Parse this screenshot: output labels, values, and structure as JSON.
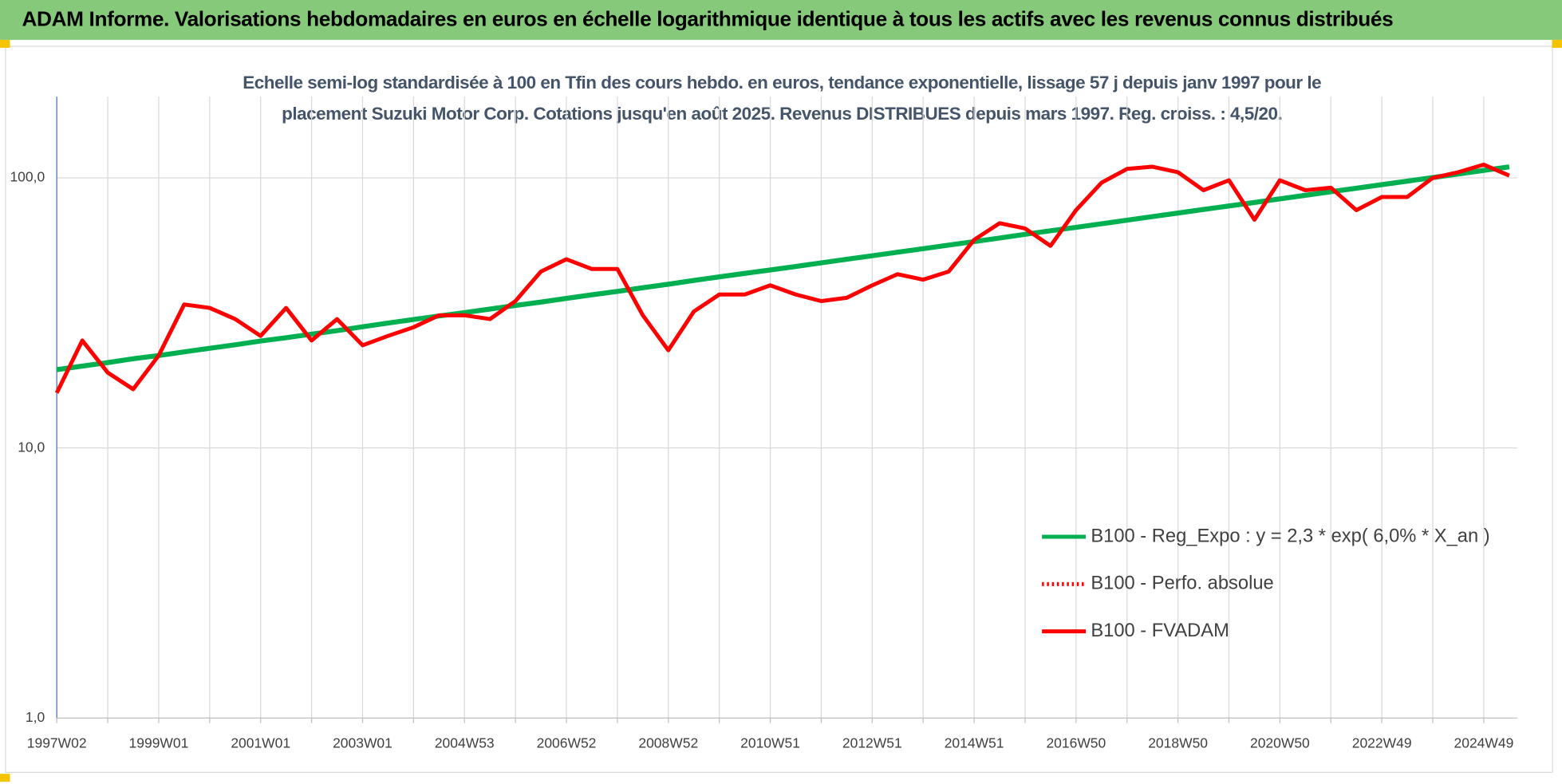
{
  "header": {
    "title": "ADAM Informe. Valorisations hebdomadaires en euros en échelle logarithmique identique à tous les actifs avec les revenus connus distribués"
  },
  "chart_data": {
    "type": "line",
    "title": "Echelle semi-log standardisée à 100 en Tfin des cours hebdo. en euros, tendance exponentielle, lissage 57 j depuis janv 1997 pour le placement Suzuki Motor Corp. Cotations jusqu'en août 2025. Revenus DISTRIBUES depuis mars 1997. Reg. croiss. : 4,5/20.",
    "categories": [
      "1997W02",
      null,
      null,
      null,
      "1999W01",
      null,
      null,
      null,
      "2001W01",
      null,
      null,
      null,
      "2003W01",
      null,
      null,
      null,
      "2004W53",
      null,
      null,
      null,
      "2006W52",
      null,
      null,
      null,
      "2008W52",
      null,
      null,
      null,
      "2010W51",
      null,
      null,
      null,
      "2012W51",
      null,
      null,
      null,
      "2014W51",
      null,
      null,
      null,
      "2016W50",
      null,
      null,
      null,
      "2018W50",
      null,
      null,
      null,
      "2020W50",
      null,
      null,
      null,
      "2022W49",
      null,
      null,
      null,
      "2024W49",
      null
    ],
    "series": [
      {
        "name": "B100 - Reg_Expo : y = 2,3 * exp( 6,0% *  X_an )",
        "color": "#00b050",
        "dash": "solid",
        "values": [
          19.5,
          20.1,
          20.7,
          21.4,
          22.0,
          22.7,
          23.4,
          24.1,
          24.9,
          25.6,
          26.4,
          27.2,
          28.1,
          29.0,
          29.9,
          30.8,
          31.7,
          32.7,
          33.7,
          34.7,
          35.8,
          36.9,
          38.0,
          39.2,
          40.4,
          41.7,
          43.0,
          44.3,
          45.6,
          47.0,
          48.5,
          50.0,
          51.5,
          53.1,
          54.7,
          56.4,
          58.1,
          59.9,
          61.8,
          63.7,
          65.6,
          67.6,
          69.7,
          71.9,
          74.1,
          76.4,
          78.7,
          81.1,
          83.6,
          86.2,
          88.9,
          91.6,
          94.4,
          97.3,
          100.3,
          103.4,
          106.6,
          109.9
        ]
      },
      {
        "name": "B100 - Perfo. absolue",
        "color": "#ff0000",
        "dash": "dotted"
      },
      {
        "name": "B100 - FVADAM",
        "color": "#ff0000",
        "dash": "solid",
        "values": [
          16,
          25,
          19,
          16.5,
          22,
          34,
          33,
          30,
          26,
          33,
          25,
          30,
          24,
          26,
          28,
          31,
          31,
          30,
          35,
          45,
          50,
          46,
          46,
          31,
          23,
          32,
          37,
          37,
          40,
          37,
          35,
          36,
          40,
          44,
          42,
          45,
          59,
          68,
          65,
          56,
          76,
          96,
          108,
          110,
          105,
          90,
          98,
          70,
          98,
          90,
          92,
          76,
          85,
          85,
          100,
          105,
          112,
          102
        ]
      }
    ],
    "log_scale": true,
    "ylim": [
      1,
      200
    ],
    "yticks": [
      {
        "value": 1,
        "label": "1,0"
      },
      {
        "value": 10,
        "label": "10,0"
      },
      {
        "value": 100,
        "label": "100,0"
      }
    ],
    "grid": true,
    "legend": "lower right"
  }
}
